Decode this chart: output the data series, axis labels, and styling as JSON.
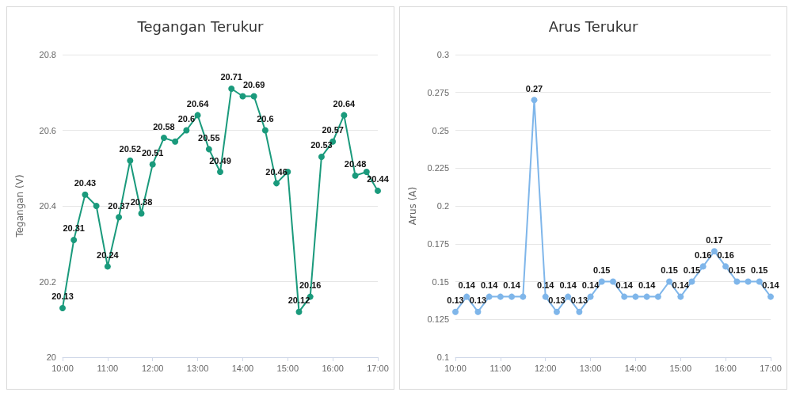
{
  "chart_data": [
    {
      "type": "line",
      "title": "Tegangan Terukur",
      "ylabel": "Tegangan (V)",
      "x": [
        10,
        10.25,
        10.5,
        10.75,
        11,
        11.25,
        11.5,
        11.75,
        12,
        12.25,
        12.5,
        12.75,
        13,
        13.25,
        13.5,
        13.75,
        14,
        14.25,
        14.5,
        14.75,
        15,
        15.25,
        15.5,
        15.75,
        16,
        16.25,
        16.5,
        16.75,
        17
      ],
      "series": [
        {
          "color": "#1a9a7c",
          "values": [
            20.13,
            20.31,
            20.43,
            20.4,
            20.24,
            20.37,
            20.52,
            20.38,
            20.51,
            20.58,
            20.57,
            20.6,
            20.64,
            20.55,
            20.49,
            20.71,
            20.69,
            20.69,
            20.6,
            20.46,
            20.49,
            20.12,
            20.16,
            20.53,
            20.57,
            20.64,
            20.48,
            20.49,
            20.44
          ],
          "value_labels": [
            "20.13",
            "20.31",
            "20.43",
            null,
            "20.24",
            "20.37",
            "20.52",
            "20.38",
            "20.51",
            "20.58",
            null,
            "20.6",
            "20.64",
            "20.55",
            "20.49",
            "20.71",
            null,
            "20.69",
            "20.6",
            "20.46",
            null,
            "20.12",
            "20.16",
            "20.53",
            "20.57",
            "20.64",
            "20.48",
            null,
            "20.44"
          ]
        }
      ],
      "xlim": [
        10,
        17
      ],
      "xticks": [
        {
          "value": 10,
          "label": "10:00"
        },
        {
          "value": 11,
          "label": "11:00"
        },
        {
          "value": 12,
          "label": "12:00"
        },
        {
          "value": 13,
          "label": "13:00"
        },
        {
          "value": 14,
          "label": "14:00"
        },
        {
          "value": 15,
          "label": "15:00"
        },
        {
          "value": 16,
          "label": "16:00"
        },
        {
          "value": 17,
          "label": "17:00"
        }
      ],
      "ylim": [
        20,
        20.8
      ],
      "yticks": [
        20,
        20.2,
        20.4,
        20.6,
        20.8
      ],
      "grid": "y",
      "marker": "circle"
    },
    {
      "type": "line",
      "title": "Arus Terukur",
      "ylabel": "Arus (A)",
      "x": [
        10,
        10.25,
        10.5,
        10.75,
        11,
        11.25,
        11.5,
        11.75,
        12,
        12.25,
        12.5,
        12.75,
        13,
        13.25,
        13.5,
        13.75,
        14,
        14.25,
        14.5,
        14.75,
        15,
        15.25,
        15.5,
        15.75,
        16,
        16.25,
        16.5,
        16.75,
        17
      ],
      "series": [
        {
          "color": "#7fb6ea",
          "values": [
            0.13,
            0.14,
            0.13,
            0.14,
            0.14,
            0.14,
            0.14,
            0.27,
            0.14,
            0.13,
            0.14,
            0.13,
            0.14,
            0.15,
            0.15,
            0.14,
            0.14,
            0.14,
            0.14,
            0.15,
            0.14,
            0.15,
            0.16,
            0.17,
            0.16,
            0.15,
            0.15,
            0.15,
            0.14
          ],
          "value_labels": [
            "0.13",
            "0.14",
            "0.13",
            "0.14",
            null,
            "0.14",
            null,
            "0.27",
            "0.14",
            "0.13",
            "0.14",
            "0.13",
            "0.14",
            "0.15",
            null,
            "0.14",
            null,
            "0.14",
            null,
            "0.15",
            "0.14",
            "0.15",
            "0.16",
            "0.17",
            "0.16",
            "0.15",
            null,
            "0.15",
            "0.14"
          ]
        }
      ],
      "xlim": [
        10,
        17
      ],
      "xticks": [
        {
          "value": 10,
          "label": "10:00"
        },
        {
          "value": 11,
          "label": "11:00"
        },
        {
          "value": 12,
          "label": "12:00"
        },
        {
          "value": 13,
          "label": "13:00"
        },
        {
          "value": 14,
          "label": "14:00"
        },
        {
          "value": 15,
          "label": "15:00"
        },
        {
          "value": 16,
          "label": "16:00"
        },
        {
          "value": 17,
          "label": "17:00"
        }
      ],
      "ylim": [
        0.1,
        0.3
      ],
      "yticks": [
        0.1,
        0.125,
        0.15,
        0.175,
        0.2,
        0.225,
        0.25,
        0.275,
        0.3
      ],
      "grid": "y",
      "marker": "circle"
    }
  ]
}
